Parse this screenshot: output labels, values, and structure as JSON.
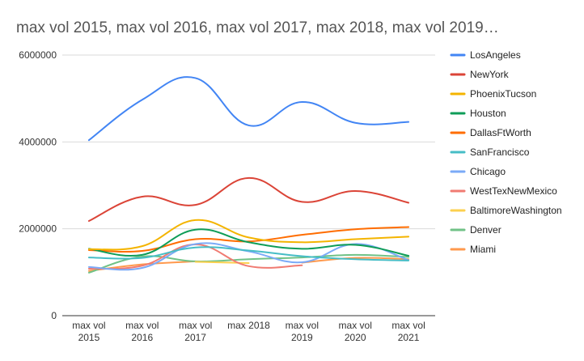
{
  "chart_data": {
    "type": "line",
    "title": "max vol 2015, max vol 2016, max vol 2017, max 2018, max vol 2019…",
    "xlabel": "",
    "ylabel": "",
    "categories": [
      [
        "max vol",
        "2015"
      ],
      [
        "max vol",
        "2016"
      ],
      [
        "max vol",
        "2017"
      ],
      [
        "max 2018"
      ],
      [
        "max vol",
        "2019"
      ],
      [
        "max vol",
        "2020"
      ],
      [
        "max vol",
        "2021"
      ]
    ],
    "ylim": [
      0,
      6000000
    ],
    "yticks": [
      {
        "value": 0,
        "label": "0"
      },
      {
        "value": 2000000,
        "label": "2000000"
      },
      {
        "value": 4000000,
        "label": "4000000"
      },
      {
        "value": 6000000,
        "label": "6000000"
      }
    ],
    "grid": true,
    "smooth": true,
    "legend_position": "right",
    "series": [
      {
        "name": "LosAngeles",
        "color": "#4285f4",
        "values": [
          4040000,
          4970000,
          5470000,
          4380000,
          4920000,
          4440000,
          4460000
        ]
      },
      {
        "name": "NewYork",
        "color": "#db4437",
        "values": [
          2180000,
          2740000,
          2550000,
          3170000,
          2620000,
          2870000,
          2600000
        ]
      },
      {
        "name": "PhoenixTucson",
        "color": "#f4b400",
        "values": [
          1530000,
          1600000,
          2200000,
          1800000,
          1690000,
          1760000,
          1820000
        ]
      },
      {
        "name": "Houston",
        "color": "#0f9d58",
        "values": [
          1540000,
          1400000,
          1980000,
          1690000,
          1540000,
          1630000,
          1380000
        ]
      },
      {
        "name": "DallasFtWorth",
        "color": "#ff6d01",
        "values": [
          1510000,
          1490000,
          1760000,
          1710000,
          1860000,
          1990000,
          2040000
        ]
      },
      {
        "name": "SanFrancisco",
        "color": "#46bdc6",
        "values": [
          1340000,
          1330000,
          1570000,
          1500000,
          1370000,
          1300000,
          1270000
        ]
      },
      {
        "name": "Chicago",
        "color": "#7baaf7",
        "values": [
          1120000,
          1100000,
          1650000,
          1480000,
          1230000,
          1650000,
          1280000
        ]
      },
      {
        "name": "WestTexNewMexico",
        "color": "#f07b72",
        "values": [
          1080000,
          1150000,
          1640000,
          1140000,
          1160000,
          null,
          null
        ]
      },
      {
        "name": "BaltimoreWashington",
        "color": "#fcd04f",
        "values": [
          null,
          null,
          1240000,
          1210000,
          null,
          null,
          null
        ]
      },
      {
        "name": "Denver",
        "color": "#71c287",
        "values": [
          990000,
          1360000,
          1250000,
          1300000,
          1340000,
          1400000,
          1350000
        ]
      },
      {
        "name": "Miami",
        "color": "#ff994d",
        "values": [
          1030000,
          1180000,
          1250000,
          null,
          1220000,
          1330000,
          1300000
        ]
      }
    ]
  }
}
